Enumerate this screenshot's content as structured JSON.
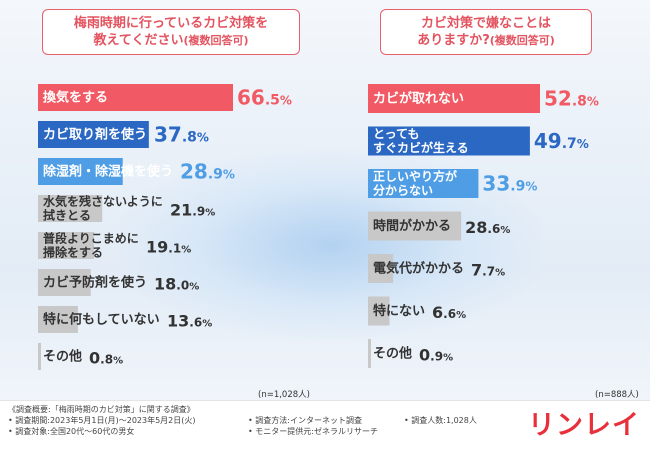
{
  "chart_data": [
    {
      "type": "bar",
      "orientation": "horizontal",
      "title": "梅雨時期に行っているカビ対策を教えてください",
      "subtitle": "(複数回答可)",
      "categories": [
        [
          "換気をする"
        ],
        [
          "カビ取り剤を使う"
        ],
        [
          "除湿剤・除湿機を使う"
        ],
        [
          "水気を残さないように",
          "拭きとる"
        ],
        [
          "普段よりこまめに",
          "掃除をする"
        ],
        [
          "カビ予防剤を使う"
        ],
        [
          "特に何もしていない"
        ],
        [
          "その他"
        ]
      ],
      "values": [
        66.5,
        37.8,
        28.9,
        21.9,
        19.1,
        18.0,
        13.6,
        0.8
      ],
      "value_int": [
        "66",
        "37",
        "28",
        "21",
        "19",
        "18",
        "13",
        "0"
      ],
      "value_dec": [
        ".5",
        ".8",
        ".9",
        ".9",
        ".1",
        ".0",
        ".6",
        ".8"
      ],
      "unit": "%",
      "bar_colors": [
        "#f15a64",
        "#2b68c3",
        "#4f9ee5",
        "#c8c8c8",
        "#c8c8c8",
        "#c8c8c8",
        "#c8c8c8",
        "#c8c8c8"
      ],
      "value_colors": [
        "#f15a64",
        "#2b68c3",
        "#4f9ee5",
        "#333333",
        "#333333",
        "#333333",
        "#333333",
        "#333333"
      ],
      "label_colors": [
        "#ffffff",
        "#ffffff",
        "#ffffff",
        "#333333",
        "#333333",
        "#333333",
        "#333333",
        "#333333"
      ],
      "n_note": "(n=1,028人)"
    },
    {
      "type": "bar",
      "orientation": "horizontal",
      "title": "カビ対策で嫌なことはありますか?",
      "subtitle": "(複数回答可)",
      "categories": [
        [
          "カビが取れない"
        ],
        [
          "とっても",
          "すぐカビが生える"
        ],
        [
          "正しいやり方が",
          "分からない"
        ],
        [
          "時間がかかる"
        ],
        [
          "電気代がかかる"
        ],
        [
          "特にない"
        ],
        [
          "その他"
        ]
      ],
      "values": [
        52.8,
        49.7,
        33.9,
        28.6,
        7.7,
        6.6,
        0.9
      ],
      "value_int": [
        "52",
        "49",
        "33",
        "28",
        "7",
        "6",
        "0"
      ],
      "value_dec": [
        ".8",
        ".7",
        ".9",
        ".6",
        ".7",
        ".6",
        ".9"
      ],
      "unit": "%",
      "bar_colors": [
        "#f15a64",
        "#2b68c3",
        "#4f9ee5",
        "#c8c8c8",
        "#c8c8c8",
        "#c8c8c8",
        "#c8c8c8"
      ],
      "value_colors": [
        "#f15a64",
        "#2b68c3",
        "#4f9ee5",
        "#333333",
        "#333333",
        "#333333",
        "#333333"
      ],
      "label_colors": [
        "#ffffff",
        "#ffffff",
        "#ffffff",
        "#333333",
        "#333333",
        "#333333",
        "#333333"
      ],
      "n_note": "(n=888人)"
    }
  ],
  "questions": {
    "left": {
      "line1": "梅雨時期に行っているカビ対策を",
      "line2": "教えてください",
      "sub": "(複数回答可)"
    },
    "right": {
      "line1": "カビ対策で嫌なことは",
      "line2": "ありますか?",
      "sub": "(複数回答可)"
    }
  },
  "footer": {
    "overview": "《調査概要:「梅雨時期のカビ対策」に関する調査》",
    "period": "• 調査期間:2023年5月1日(月)〜2023年5月2日(火)",
    "target": "• 調査対象:全国20代〜60代の男女",
    "method": "• 調査方法:インターネット調査",
    "provider": "• モニター提供元:ゼネラルリサーチ",
    "count": "• 調査人数:1,028人",
    "logo": "リンレイ"
  }
}
